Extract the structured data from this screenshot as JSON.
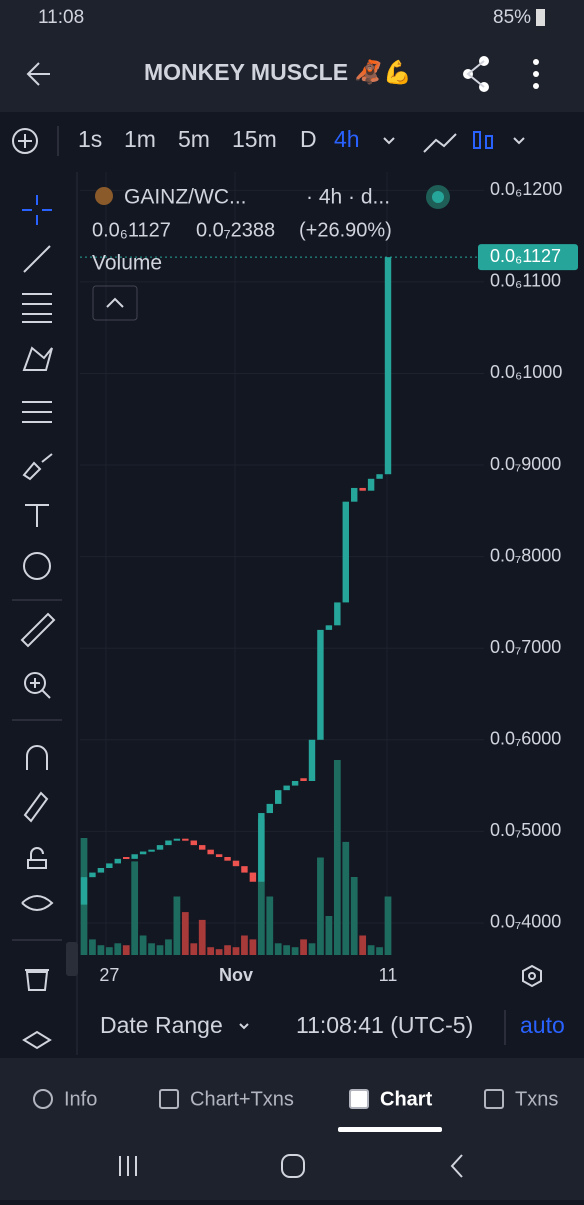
{
  "status": {
    "time": "11:08",
    "battery": "85%"
  },
  "appbar": {
    "title": "MONKEY MUSCLE 🦧💪"
  },
  "toolbar": {
    "timeframes": [
      "1s",
      "1m",
      "5m",
      "15m",
      "D",
      "4h"
    ],
    "active": 5
  },
  "legend": {
    "symbol": "GAINZ/WC...",
    "interval": "· 4h · d...",
    "price": "0.0₆1127",
    "change_abs": "0.0₇2388",
    "change_pct": "(+26.90%)",
    "study": "Volume"
  },
  "chart_data": {
    "type": "candlestick",
    "candles": [
      {
        "open": 4.2e-08,
        "close": 4.5e-08
      },
      {
        "open": 4.5e-08,
        "close": 4.55e-08
      },
      {
        "open": 4.55e-08,
        "close": 4.6e-08
      },
      {
        "open": 4.6e-08,
        "close": 4.65e-08
      },
      {
        "open": 4.65e-08,
        "close": 4.7e-08
      },
      {
        "open": 4.72e-08,
        "close": 4.7e-08
      },
      {
        "open": 4.7e-08,
        "close": 4.75e-08
      },
      {
        "open": 4.75e-08,
        "close": 4.78e-08
      },
      {
        "open": 4.78e-08,
        "close": 4.8e-08
      },
      {
        "open": 4.8e-08,
        "close": 4.85e-08
      },
      {
        "open": 4.85e-08,
        "close": 4.9e-08
      },
      {
        "open": 4.9e-08,
        "close": 4.92e-08
      },
      {
        "open": 4.92e-08,
        "close": 4.9e-08
      },
      {
        "open": 4.9e-08,
        "close": 4.85e-08
      },
      {
        "open": 4.85e-08,
        "close": 4.8e-08
      },
      {
        "open": 4.8e-08,
        "close": 4.75e-08
      },
      {
        "open": 4.75e-08,
        "close": 4.72e-08
      },
      {
        "open": 4.72e-08,
        "close": 4.68e-08
      },
      {
        "open": 4.68e-08,
        "close": 4.62e-08
      },
      {
        "open": 4.62e-08,
        "close": 4.55e-08
      },
      {
        "open": 4.55e-08,
        "close": 4.45e-08
      },
      {
        "open": 4.45e-08,
        "close": 5.2e-08
      },
      {
        "open": 5.2e-08,
        "close": 5.3e-08
      },
      {
        "open": 5.3e-08,
        "close": 5.45e-08
      },
      {
        "open": 5.45e-08,
        "close": 5.5e-08
      },
      {
        "open": 5.5e-08,
        "close": 5.55e-08
      },
      {
        "open": 5.58e-08,
        "close": 5.55e-08
      },
      {
        "open": 5.55e-08,
        "close": 6e-08
      },
      {
        "open": 6e-08,
        "close": 7.2e-08
      },
      {
        "open": 7.2e-08,
        "close": 7.25e-08
      },
      {
        "open": 7.25e-08,
        "close": 7.5e-08
      },
      {
        "open": 7.5e-08,
        "close": 8.6e-08
      },
      {
        "open": 8.6e-08,
        "close": 8.75e-08
      },
      {
        "open": 8.75e-08,
        "close": 8.72e-08
      },
      {
        "open": 8.72e-08,
        "close": 8.85e-08
      },
      {
        "open": 8.85e-08,
        "close": 8.9e-08
      },
      {
        "open": 8.9e-08,
        "close": 1.127e-07
      }
    ],
    "volumes": [
      60,
      8,
      5,
      4,
      6,
      5,
      48,
      10,
      6,
      5,
      8,
      30,
      22,
      6,
      18,
      4,
      3,
      5,
      4,
      10,
      8,
      70,
      30,
      6,
      5,
      4,
      8,
      6,
      50,
      20,
      100,
      58,
      40,
      10,
      5,
      4,
      30
    ],
    "up_color": "#26a69a",
    "down_color": "#ef5350",
    "ylim": [
      3.65e-08,
      1.22e-07
    ],
    "yticks": [
      {
        "value": 1.2e-07,
        "label": "0.0₆1200"
      },
      {
        "value": 1.1e-07,
        "label": "0.0₆1100"
      },
      {
        "value": 1e-07,
        "label": "0.0₆1000"
      },
      {
        "value": 9e-08,
        "label": "0.0₇9000"
      },
      {
        "value": 8e-08,
        "label": "0.0₇8000"
      },
      {
        "value": 7e-08,
        "label": "0.0₇7000"
      },
      {
        "value": 6e-08,
        "label": "0.0₇6000"
      },
      {
        "value": 5e-08,
        "label": "0.0₇5000"
      },
      {
        "value": 4e-08,
        "label": "0.0₇4000"
      }
    ],
    "last_price": {
      "value": 1.127e-07,
      "label": "0.0₆1127"
    },
    "xticks": [
      {
        "index": 3,
        "label": "27"
      },
      {
        "index": 18,
        "label": "Nov"
      },
      {
        "index": 36,
        "label": "11"
      }
    ]
  },
  "footer": {
    "range": "Date Range",
    "clock": "11:08:41 (UTC-5)",
    "scale": "auto"
  },
  "tabs": [
    "Info",
    "Chart+Txns",
    "Chart",
    "Txns"
  ],
  "active_tab": 2
}
